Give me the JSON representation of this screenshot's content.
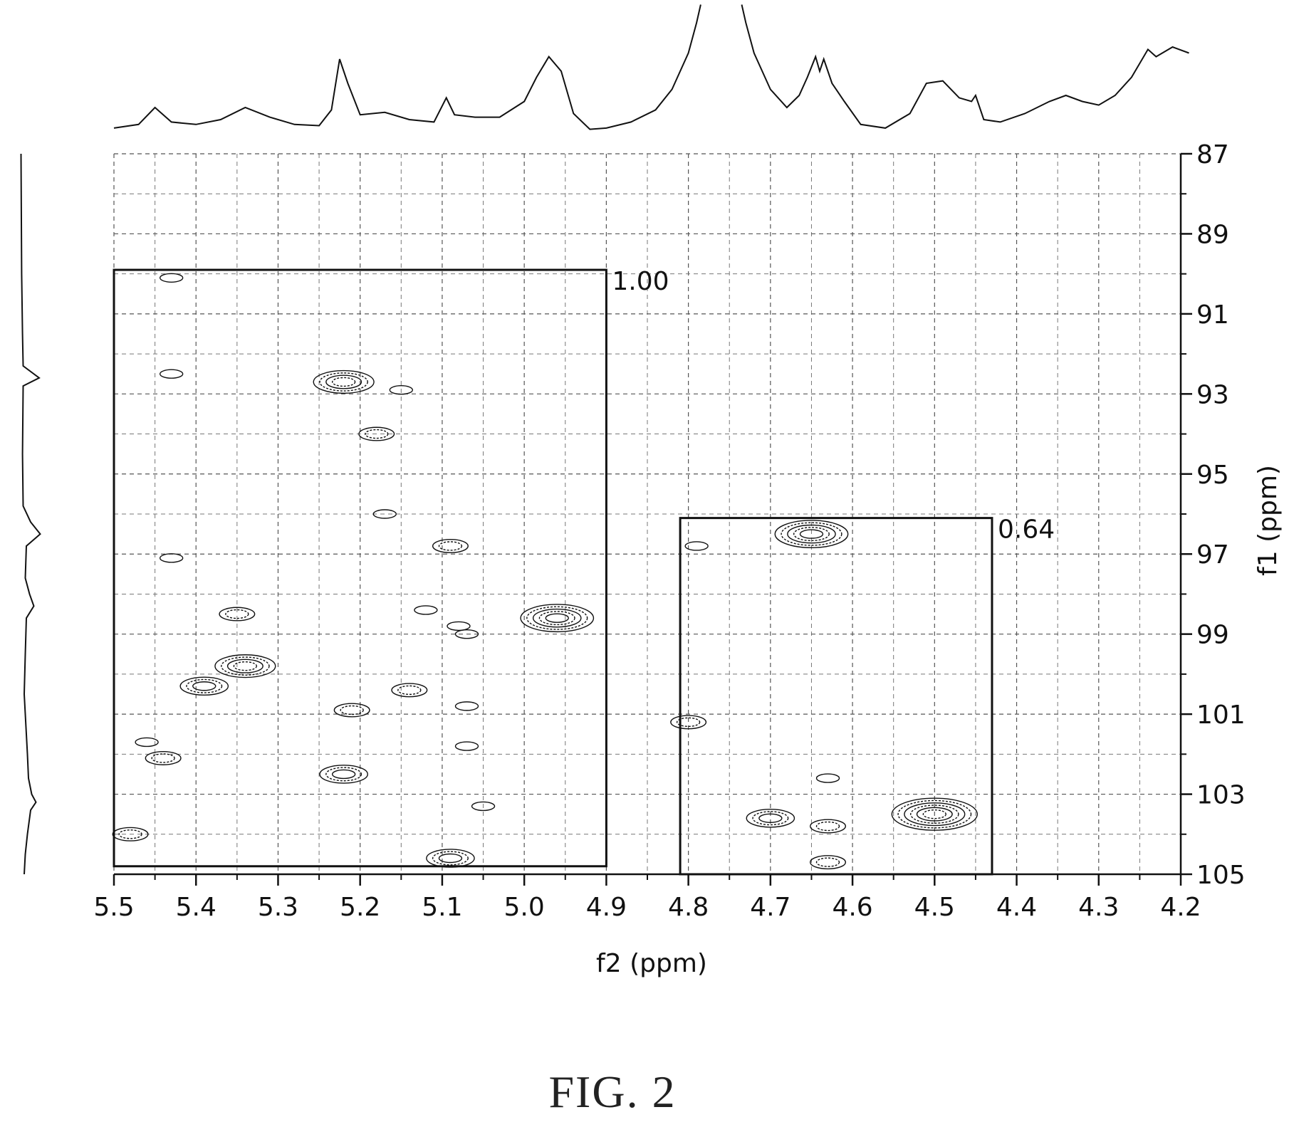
{
  "figure_label": "FIG. 2",
  "chart_data": {
    "type": "contour",
    "xlabel": "f2 (ppm)",
    "ylabel": "f1 (ppm)",
    "xlim": [
      5.5,
      4.2
    ],
    "ylim": [
      87,
      105
    ],
    "x_reversed": true,
    "y_inverted": true,
    "grid": true,
    "x_ticks": [
      5.5,
      5.4,
      5.3,
      5.2,
      5.1,
      5.0,
      4.9,
      4.8,
      4.7,
      4.6,
      4.5,
      4.4,
      4.3,
      4.2
    ],
    "x_tick_labels": [
      "5.5",
      "5.4",
      "5.3",
      "5.2",
      "5.1",
      "5.0",
      "4.9",
      "4.8",
      "4.7",
      "4.6",
      "4.5",
      "4.4",
      "4.3",
      "4.2"
    ],
    "y_ticks": [
      87,
      89,
      91,
      93,
      95,
      97,
      99,
      101,
      103,
      105
    ],
    "y_tick_labels": [
      "87",
      "89",
      "91",
      "93",
      "95",
      "97",
      "99",
      "101",
      "103",
      "105"
    ],
    "regions": [
      {
        "label": "1.00",
        "x_range": [
          5.5,
          4.9
        ],
        "y_range": [
          89.9,
          104.8
        ]
      },
      {
        "label": "0.64",
        "x_range": [
          4.81,
          4.43
        ],
        "y_range": [
          96.1,
          105.0
        ]
      }
    ],
    "peaks": [
      {
        "x": 5.43,
        "y": 90.1,
        "intensity": 1
      },
      {
        "x": 5.43,
        "y": 92.5,
        "intensity": 1
      },
      {
        "x": 5.22,
        "y": 92.7,
        "intensity": 4
      },
      {
        "x": 5.15,
        "y": 92.9,
        "intensity": 1
      },
      {
        "x": 5.18,
        "y": 94.0,
        "intensity": 2
      },
      {
        "x": 5.17,
        "y": 96.0,
        "intensity": 1
      },
      {
        "x": 5.09,
        "y": 96.8,
        "intensity": 2
      },
      {
        "x": 5.43,
        "y": 97.1,
        "intensity": 1
      },
      {
        "x": 5.35,
        "y": 98.5,
        "intensity": 2
      },
      {
        "x": 5.12,
        "y": 98.4,
        "intensity": 1
      },
      {
        "x": 4.96,
        "y": 98.6,
        "intensity": 5
      },
      {
        "x": 5.08,
        "y": 98.8,
        "intensity": 1
      },
      {
        "x": 5.07,
        "y": 99.0,
        "intensity": 1
      },
      {
        "x": 5.34,
        "y": 99.8,
        "intensity": 4
      },
      {
        "x": 5.39,
        "y": 100.3,
        "intensity": 3
      },
      {
        "x": 5.14,
        "y": 100.4,
        "intensity": 2
      },
      {
        "x": 5.07,
        "y": 100.8,
        "intensity": 1
      },
      {
        "x": 5.21,
        "y": 100.9,
        "intensity": 2
      },
      {
        "x": 5.46,
        "y": 101.7,
        "intensity": 1
      },
      {
        "x": 5.44,
        "y": 102.1,
        "intensity": 2
      },
      {
        "x": 5.07,
        "y": 101.8,
        "intensity": 1
      },
      {
        "x": 5.22,
        "y": 102.5,
        "intensity": 3
      },
      {
        "x": 5.05,
        "y": 103.3,
        "intensity": 1
      },
      {
        "x": 5.48,
        "y": 104.0,
        "intensity": 2
      },
      {
        "x": 5.09,
        "y": 104.6,
        "intensity": 3
      },
      {
        "x": 4.65,
        "y": 96.5,
        "intensity": 5
      },
      {
        "x": 4.79,
        "y": 96.8,
        "intensity": 1
      },
      {
        "x": 4.8,
        "y": 101.2,
        "intensity": 2
      },
      {
        "x": 4.63,
        "y": 102.6,
        "intensity": 1
      },
      {
        "x": 4.5,
        "y": 103.5,
        "intensity": 6
      },
      {
        "x": 4.7,
        "y": 103.6,
        "intensity": 3
      },
      {
        "x": 4.63,
        "y": 103.8,
        "intensity": 2
      },
      {
        "x": 4.63,
        "y": 104.7,
        "intensity": 2
      }
    ],
    "top_projection": [
      [
        5.5,
        0.03
      ],
      [
        5.47,
        0.06
      ],
      [
        5.45,
        0.2
      ],
      [
        5.43,
        0.08
      ],
      [
        5.4,
        0.06
      ],
      [
        5.37,
        0.1
      ],
      [
        5.34,
        0.2
      ],
      [
        5.31,
        0.12
      ],
      [
        5.28,
        0.06
      ],
      [
        5.25,
        0.05
      ],
      [
        5.235,
        0.18
      ],
      [
        5.225,
        0.6
      ],
      [
        5.215,
        0.4
      ],
      [
        5.2,
        0.14
      ],
      [
        5.17,
        0.16
      ],
      [
        5.14,
        0.1
      ],
      [
        5.11,
        0.08
      ],
      [
        5.095,
        0.28
      ],
      [
        5.085,
        0.14
      ],
      [
        5.06,
        0.12
      ],
      [
        5.03,
        0.12
      ],
      [
        5.0,
        0.25
      ],
      [
        4.985,
        0.45
      ],
      [
        4.97,
        0.62
      ],
      [
        4.955,
        0.5
      ],
      [
        4.94,
        0.15
      ],
      [
        4.92,
        0.02
      ],
      [
        4.9,
        0.03
      ],
      [
        4.87,
        0.08
      ],
      [
        4.84,
        0.18
      ],
      [
        4.82,
        0.35
      ],
      [
        4.8,
        0.65
      ],
      [
        4.79,
        0.9
      ],
      [
        4.785,
        1.05
      ],
      [
        4.735,
        1.05
      ],
      [
        4.73,
        0.9
      ],
      [
        4.72,
        0.65
      ],
      [
        4.7,
        0.35
      ],
      [
        4.68,
        0.2
      ],
      [
        4.665,
        0.3
      ],
      [
        4.655,
        0.45
      ],
      [
        4.645,
        0.62
      ],
      [
        4.64,
        0.5
      ],
      [
        4.635,
        0.6
      ],
      [
        4.625,
        0.4
      ],
      [
        4.61,
        0.25
      ],
      [
        4.59,
        0.06
      ],
      [
        4.56,
        0.03
      ],
      [
        4.53,
        0.15
      ],
      [
        4.51,
        0.4
      ],
      [
        4.49,
        0.42
      ],
      [
        4.47,
        0.28
      ],
      [
        4.455,
        0.25
      ],
      [
        4.45,
        0.3
      ],
      [
        4.44,
        0.1
      ],
      [
        4.42,
        0.08
      ],
      [
        4.39,
        0.15
      ],
      [
        4.36,
        0.25
      ],
      [
        4.34,
        0.3
      ],
      [
        4.32,
        0.25
      ],
      [
        4.3,
        0.22
      ],
      [
        4.28,
        0.3
      ],
      [
        4.26,
        0.45
      ],
      [
        4.24,
        0.68
      ],
      [
        4.23,
        0.62
      ],
      [
        4.21,
        0.7
      ],
      [
        4.19,
        0.65
      ]
    ],
    "left_projection": [
      [
        87.0,
        0.05
      ],
      [
        90.0,
        0.08
      ],
      [
        91.5,
        0.12
      ],
      [
        92.3,
        0.15
      ],
      [
        92.6,
        0.9
      ],
      [
        92.8,
        0.15
      ],
      [
        94.5,
        0.12
      ],
      [
        95.8,
        0.15
      ],
      [
        96.2,
        0.5
      ],
      [
        96.5,
        0.95
      ],
      [
        96.8,
        0.3
      ],
      [
        97.6,
        0.25
      ],
      [
        98.0,
        0.45
      ],
      [
        98.3,
        0.65
      ],
      [
        98.6,
        0.3
      ],
      [
        99.5,
        0.25
      ],
      [
        100.5,
        0.2
      ],
      [
        101.5,
        0.3
      ],
      [
        102.0,
        0.35
      ],
      [
        102.6,
        0.4
      ],
      [
        103.0,
        0.55
      ],
      [
        103.2,
        0.75
      ],
      [
        103.4,
        0.5
      ],
      [
        104.0,
        0.35
      ],
      [
        104.5,
        0.25
      ],
      [
        105.0,
        0.2
      ]
    ]
  }
}
